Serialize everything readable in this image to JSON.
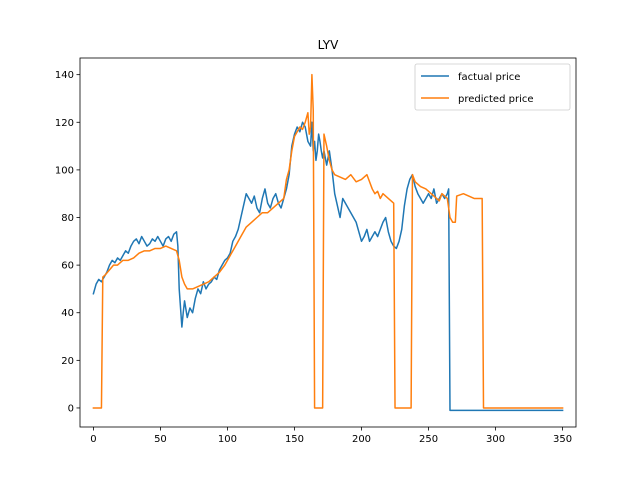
{
  "chart_data": {
    "type": "line",
    "title": "LYV",
    "xlabel": "",
    "ylabel": "",
    "xlim": [
      -10,
      360
    ],
    "ylim": [
      -8,
      147
    ],
    "xticks": [
      0,
      50,
      100,
      150,
      200,
      250,
      300,
      350
    ],
    "yticks": [
      0,
      20,
      40,
      60,
      80,
      100,
      120,
      140
    ],
    "grid": false,
    "legend_position": "upper right",
    "series": [
      {
        "name": "factual price",
        "color": "#1f77b4",
        "points": [
          [
            0,
            48
          ],
          [
            2,
            52
          ],
          [
            4,
            54
          ],
          [
            6,
            53
          ],
          [
            8,
            55
          ],
          [
            10,
            57
          ],
          [
            12,
            60
          ],
          [
            14,
            62
          ],
          [
            16,
            61
          ],
          [
            18,
            63
          ],
          [
            20,
            62
          ],
          [
            22,
            64
          ],
          [
            24,
            66
          ],
          [
            26,
            65
          ],
          [
            28,
            68
          ],
          [
            30,
            70
          ],
          [
            32,
            71
          ],
          [
            34,
            69
          ],
          [
            36,
            72
          ],
          [
            38,
            70
          ],
          [
            40,
            68
          ],
          [
            42,
            69
          ],
          [
            44,
            71
          ],
          [
            46,
            70
          ],
          [
            48,
            72
          ],
          [
            50,
            70
          ],
          [
            52,
            68
          ],
          [
            54,
            71
          ],
          [
            56,
            72
          ],
          [
            58,
            70
          ],
          [
            60,
            73
          ],
          [
            62,
            74
          ],
          [
            63,
            68
          ],
          [
            64,
            50
          ],
          [
            65,
            42
          ],
          [
            66,
            34
          ],
          [
            67,
            40
          ],
          [
            68,
            45
          ],
          [
            70,
            38
          ],
          [
            72,
            42
          ],
          [
            74,
            40
          ],
          [
            76,
            46
          ],
          [
            78,
            50
          ],
          [
            80,
            48
          ],
          [
            82,
            53
          ],
          [
            84,
            50
          ],
          [
            86,
            52
          ],
          [
            88,
            53
          ],
          [
            90,
            55
          ],
          [
            92,
            54
          ],
          [
            94,
            58
          ],
          [
            96,
            60
          ],
          [
            98,
            62
          ],
          [
            100,
            63
          ],
          [
            102,
            65
          ],
          [
            104,
            70
          ],
          [
            106,
            72
          ],
          [
            108,
            75
          ],
          [
            110,
            80
          ],
          [
            112,
            85
          ],
          [
            114,
            90
          ],
          [
            116,
            88
          ],
          [
            118,
            86
          ],
          [
            120,
            89
          ],
          [
            122,
            84
          ],
          [
            124,
            82
          ],
          [
            126,
            88
          ],
          [
            128,
            92
          ],
          [
            130,
            86
          ],
          [
            132,
            84
          ],
          [
            134,
            88
          ],
          [
            136,
            90
          ],
          [
            138,
            86
          ],
          [
            140,
            84
          ],
          [
            142,
            88
          ],
          [
            144,
            92
          ],
          [
            146,
            98
          ],
          [
            148,
            110
          ],
          [
            150,
            115
          ],
          [
            152,
            118
          ],
          [
            154,
            116
          ],
          [
            156,
            120
          ],
          [
            158,
            118
          ],
          [
            160,
            112
          ],
          [
            162,
            110
          ],
          [
            163,
            120
          ],
          [
            164,
            108
          ],
          [
            165,
            112
          ],
          [
            166,
            104
          ],
          [
            167,
            108
          ],
          [
            168,
            115
          ],
          [
            169,
            112
          ],
          [
            170,
            108
          ],
          [
            171,
            105
          ],
          [
            172,
            108
          ],
          [
            174,
            102
          ],
          [
            176,
            108
          ],
          [
            178,
            100
          ],
          [
            180,
            90
          ],
          [
            182,
            85
          ],
          [
            184,
            80
          ],
          [
            186,
            88
          ],
          [
            188,
            86
          ],
          [
            190,
            84
          ],
          [
            192,
            82
          ],
          [
            194,
            80
          ],
          [
            196,
            78
          ],
          [
            198,
            74
          ],
          [
            200,
            70
          ],
          [
            202,
            72
          ],
          [
            204,
            75
          ],
          [
            206,
            70
          ],
          [
            208,
            72
          ],
          [
            210,
            74
          ],
          [
            212,
            72
          ],
          [
            214,
            75
          ],
          [
            216,
            78
          ],
          [
            218,
            80
          ],
          [
            220,
            74
          ],
          [
            222,
            70
          ],
          [
            224,
            68
          ],
          [
            226,
            67
          ],
          [
            228,
            70
          ],
          [
            230,
            75
          ],
          [
            232,
            85
          ],
          [
            234,
            92
          ],
          [
            236,
            96
          ],
          [
            238,
            98
          ],
          [
            240,
            93
          ],
          [
            242,
            90
          ],
          [
            244,
            88
          ],
          [
            246,
            86
          ],
          [
            248,
            88
          ],
          [
            250,
            90
          ],
          [
            252,
            88
          ],
          [
            254,
            92
          ],
          [
            256,
            86
          ],
          [
            258,
            88
          ],
          [
            260,
            90
          ],
          [
            262,
            88
          ],
          [
            264,
            90
          ],
          [
            265,
            92
          ],
          [
            266,
            -1
          ],
          [
            300,
            -1
          ],
          [
            350,
            -1
          ]
        ]
      },
      {
        "name": "predicted price",
        "color": "#ff7f0e",
        "points": [
          [
            0,
            0
          ],
          [
            6,
            0
          ],
          [
            7,
            55
          ],
          [
            9,
            56
          ],
          [
            12,
            58
          ],
          [
            15,
            60
          ],
          [
            18,
            60
          ],
          [
            22,
            62
          ],
          [
            26,
            62
          ],
          [
            30,
            63
          ],
          [
            34,
            65
          ],
          [
            38,
            66
          ],
          [
            42,
            66
          ],
          [
            46,
            67
          ],
          [
            50,
            67
          ],
          [
            54,
            68
          ],
          [
            58,
            67
          ],
          [
            62,
            66
          ],
          [
            64,
            62
          ],
          [
            66,
            55
          ],
          [
            68,
            52
          ],
          [
            70,
            50
          ],
          [
            74,
            50
          ],
          [
            78,
            51
          ],
          [
            82,
            52
          ],
          [
            86,
            53
          ],
          [
            90,
            55
          ],
          [
            94,
            57
          ],
          [
            98,
            60
          ],
          [
            102,
            64
          ],
          [
            106,
            68
          ],
          [
            110,
            72
          ],
          [
            114,
            76
          ],
          [
            118,
            78
          ],
          [
            122,
            80
          ],
          [
            126,
            82
          ],
          [
            130,
            82
          ],
          [
            134,
            84
          ],
          [
            138,
            86
          ],
          [
            142,
            88
          ],
          [
            144,
            96
          ],
          [
            146,
            100
          ],
          [
            148,
            108
          ],
          [
            150,
            114
          ],
          [
            152,
            116
          ],
          [
            154,
            118
          ],
          [
            156,
            117
          ],
          [
            158,
            120
          ],
          [
            160,
            124
          ],
          [
            161,
            115
          ],
          [
            162,
            118
          ],
          [
            163,
            140
          ],
          [
            164,
            125
          ],
          [
            165,
            0
          ],
          [
            171,
            0
          ],
          [
            172,
            115
          ],
          [
            174,
            110
          ],
          [
            176,
            104
          ],
          [
            178,
            100
          ],
          [
            180,
            98
          ],
          [
            184,
            97
          ],
          [
            188,
            96
          ],
          [
            192,
            98
          ],
          [
            196,
            95
          ],
          [
            200,
            96
          ],
          [
            204,
            98
          ],
          [
            206,
            95
          ],
          [
            208,
            92
          ],
          [
            210,
            90
          ],
          [
            212,
            91
          ],
          [
            214,
            88
          ],
          [
            216,
            90
          ],
          [
            218,
            89
          ],
          [
            220,
            88
          ],
          [
            222,
            87
          ],
          [
            224,
            86
          ],
          [
            225,
            0
          ],
          [
            237,
            0
          ],
          [
            238,
            98
          ],
          [
            240,
            95
          ],
          [
            244,
            93
          ],
          [
            248,
            92
          ],
          [
            252,
            90
          ],
          [
            256,
            88
          ],
          [
            258,
            87
          ],
          [
            260,
            90
          ],
          [
            264,
            88
          ],
          [
            266,
            80
          ],
          [
            268,
            78
          ],
          [
            270,
            78
          ],
          [
            271,
            89
          ],
          [
            276,
            90
          ],
          [
            280,
            89
          ],
          [
            284,
            88
          ],
          [
            290,
            88
          ],
          [
            291,
            0
          ],
          [
            350,
            0
          ]
        ]
      }
    ]
  }
}
